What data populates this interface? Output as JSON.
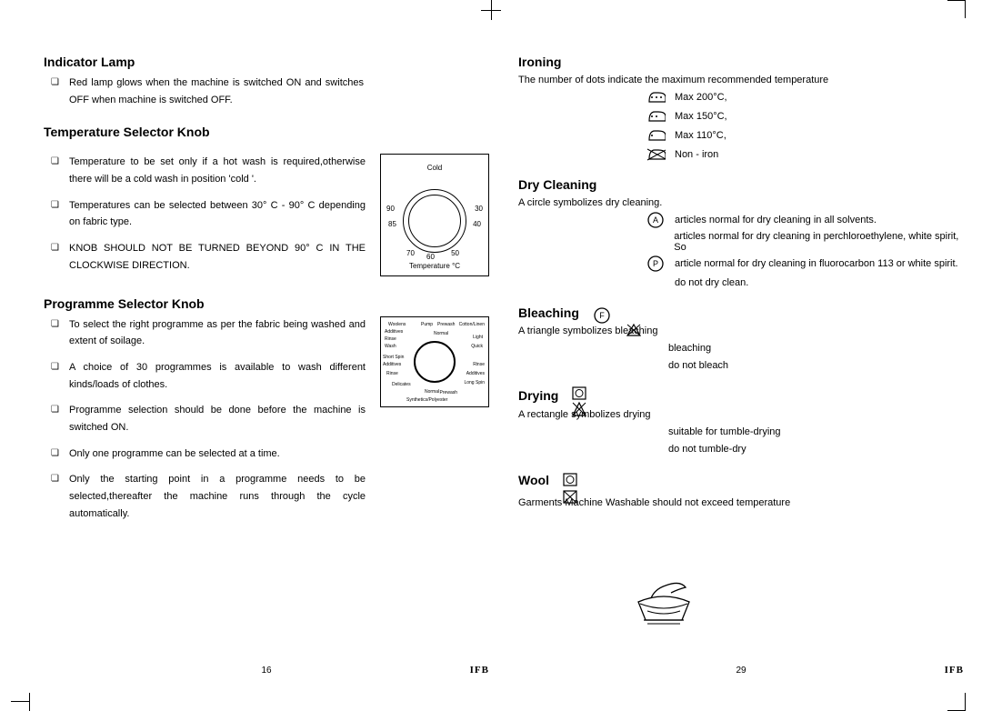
{
  "left": {
    "sec1": {
      "title": "Indicator Lamp",
      "items": [
        "Red lamp glows when the machine is switched ON and switches OFF when machine is  switched OFF."
      ]
    },
    "sec2": {
      "title": "Temperature Selector Knob",
      "items": [
        "Temperature to be set only if a hot wash is required,otherwise there will be a cold wash in position 'cold '.",
        "Temperatures can be selected between 30° C - 90° C  depending on fabric type.",
        "KNOB SHOULD NOT BE TURNED BEYOND 90° C IN THE CLOCKWISE DIRECTION."
      ],
      "knob": {
        "top": "Cold",
        "bottom": "Temperature °C",
        "values": [
          "90",
          "85",
          "70",
          "60",
          "50",
          "40",
          "30"
        ]
      }
    },
    "sec3": {
      "title": "Programme  Selector Knob",
      "items": [
        "To select the right programme as per the fabric being washed and extent of soilage.",
        "A choice of 30 programmes is available to wash different kinds/loads of clothes.",
        "Programme selection should be done before the machine is switched ON.",
        "Only one programme can be selected at a time.",
        "Only the starting point in a programme needs to be selected,thereafter the machine runs through the cycle automatically."
      ],
      "knob_labels": [
        "Woolens",
        "Additives",
        "Rinse",
        "Wash",
        "Short Spin",
        "Additives",
        "Rinse",
        "Delicates",
        "Pump",
        "Prewash",
        "Normal",
        "Normal",
        "Synthetics/Polyester",
        "Prewash",
        "Cotton/Linen",
        "Light",
        "Quick",
        "Rinse",
        "Additives",
        "Long Spin"
      ]
    },
    "page_num": "16",
    "brand": "IFB"
  },
  "right": {
    "sec1": {
      "title": "Ironing",
      "intro": "The number of dots indicate the maximum recommended temperature",
      "rows": [
        {
          "dots": 3,
          "text": "Max 200°C,"
        },
        {
          "dots": 2,
          "text": "Max 150°C,"
        },
        {
          "dots": 1,
          "text": "Max 110°C,"
        },
        {
          "dots": 0,
          "text": "Non - iron",
          "cross": true
        }
      ]
    },
    "sec2": {
      "title": "Dry Cleaning",
      "intro": "A circle symbolizes dry cleaning.",
      "rows": [
        {
          "letter": "A",
          "text": "articles normal for dry cleaning in all solvents."
        },
        {
          "letter": "",
          "text": "articles normal for dry cleaning in perchloroethylene, white spirit, So"
        },
        {
          "letter": "P",
          "text": "article normal for dry cleaning in fluorocarbon 113 or white spirit."
        },
        {
          "letter": "",
          "text": "do not dry clean."
        }
      ]
    },
    "sec3": {
      "title": "Bleaching",
      "letter": "F",
      "intro": "A triangle symbolizes bleaching",
      "rows": [
        "bleaching",
        "do not bleach"
      ]
    },
    "sec4": {
      "title": "Drying",
      "intro": "A rectangle symbolizes drying",
      "rows": [
        "suitable for tumble-drying",
        "do not tumble-dry"
      ]
    },
    "sec5": {
      "title": "Wool",
      "intro": "Garments Machine Washable should not exceed temperature"
    },
    "page_num": "29",
    "brand": "IFB"
  }
}
